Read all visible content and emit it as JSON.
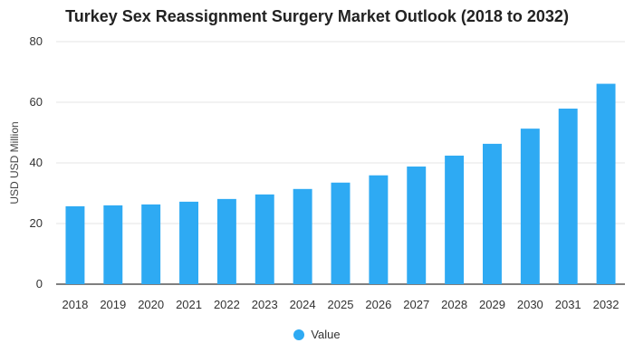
{
  "chart_data": {
    "type": "bar",
    "title": "Turkey Sex Reassignment Surgery Market Outlook (2018 to 2032)",
    "xlabel": "",
    "ylabel": "USD USD Million",
    "categories": [
      "2018",
      "2019",
      "2020",
      "2021",
      "2022",
      "2023",
      "2024",
      "2025",
      "2026",
      "2027",
      "2028",
      "2029",
      "2030",
      "2031",
      "2032"
    ],
    "series": [
      {
        "name": "Value",
        "values": [
          25.7,
          26.0,
          26.3,
          27.2,
          28.1,
          29.6,
          31.4,
          33.5,
          35.9,
          38.8,
          42.4,
          46.3,
          51.3,
          57.9,
          66.1
        ]
      }
    ],
    "ylim": [
      0,
      80
    ],
    "yticks": [
      "0",
      "20",
      "40",
      "60",
      "80"
    ],
    "grid": true,
    "legend_position": "bottom",
    "colors": {
      "bar": "#2eaaf3",
      "grid": "#e6e6e6",
      "axis": "#333333",
      "text": "#333333"
    }
  }
}
